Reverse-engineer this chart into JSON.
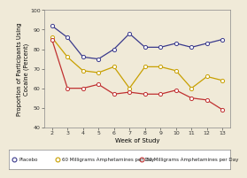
{
  "weeks": [
    2,
    3,
    4,
    5,
    6,
    7,
    8,
    9,
    10,
    11,
    12,
    13
  ],
  "placebo": [
    92,
    86,
    76,
    75,
    80,
    88,
    81,
    81,
    83,
    81,
    83,
    85
  ],
  "mg60": [
    86,
    76,
    69,
    68,
    71,
    60,
    71,
    71,
    69,
    60,
    66,
    64
  ],
  "mg80": [
    85,
    60,
    60,
    62,
    57,
    58,
    57,
    57,
    59,
    55,
    54,
    49
  ],
  "placebo_color": "#3a3a8c",
  "mg60_color": "#c8a000",
  "mg80_color": "#c03030",
  "bg_color": "#f0ead8",
  "plot_bg": "#f0ead8",
  "ylabel": "Proportion of Participants Using\nCocaine (Percent)",
  "xlabel": "Week of Study",
  "ylim": [
    40,
    100
  ],
  "yticks": [
    40,
    50,
    60,
    70,
    80,
    90,
    100
  ],
  "xticks": [
    2,
    3,
    4,
    5,
    6,
    7,
    8,
    9,
    10,
    11,
    12,
    13
  ],
  "legend_placebo": "Placebo",
  "legend_mg60": "60 Milligrams Amphetamines per Day",
  "legend_mg80": "80 Milligrams Amphetamines per Day",
  "title_fontsize": 6,
  "axis_fontsize": 5,
  "tick_fontsize": 4.5,
  "legend_fontsize": 4.0,
  "linewidth": 0.9,
  "markersize": 3.0
}
